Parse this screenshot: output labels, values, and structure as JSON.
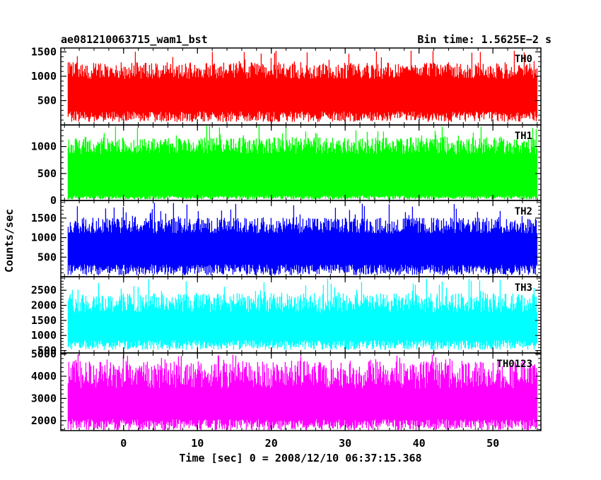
{
  "header": {
    "title": "ae081210063715_wam1_bst",
    "bin_time": "Bin time: 1.5625E−2 s"
  },
  "chart_data": {
    "type": "line",
    "xlabel": "Time [sec] 0 = 2008/12/10 06:37:15.368",
    "ylabel": "Counts/sec",
    "xlim": [
      -8.5,
      56.5
    ],
    "data_x_range": [
      -7.5,
      56
    ],
    "x_ticks": [
      0,
      10,
      20,
      30,
      40,
      50
    ],
    "grid": false,
    "legend": "none",
    "panels": [
      {
        "name": "TH0",
        "color": "#ff0000",
        "ylim": [
          0,
          1580
        ],
        "y_ticks": [
          500,
          1000,
          1500
        ],
        "baseline": 60,
        "typical_low": 250,
        "typical_high": 1150,
        "peak": 1580
      },
      {
        "name": "TH1",
        "color": "#00ff00",
        "ylim": [
          0,
          1400
        ],
        "y_ticks": [
          0,
          500,
          1000
        ],
        "baseline": 20,
        "typical_low": 80,
        "typical_high": 1050,
        "peak": 1400
      },
      {
        "name": "TH2",
        "color": "#0000ff",
        "ylim": [
          0,
          1950
        ],
        "y_ticks": [
          500,
          1000,
          1500
        ],
        "baseline": 40,
        "typical_low": 280,
        "typical_high": 1350,
        "peak": 1900
      },
      {
        "name": "TH3",
        "color": "#00ffff",
        "ylim": [
          420,
          2950
        ],
        "y_ticks": [
          500,
          1000,
          1500,
          2000,
          2500
        ],
        "baseline": 520,
        "typical_low": 800,
        "typical_high": 2150,
        "peak": 2900
      },
      {
        "name": "TH0123",
        "color": "#ff00ff",
        "ylim": [
          1550,
          5050
        ],
        "y_ticks": [
          2000,
          3000,
          4000,
          5000
        ],
        "baseline": 1560,
        "typical_low": 2000,
        "typical_high": 4200,
        "peak": 5000
      }
    ]
  }
}
